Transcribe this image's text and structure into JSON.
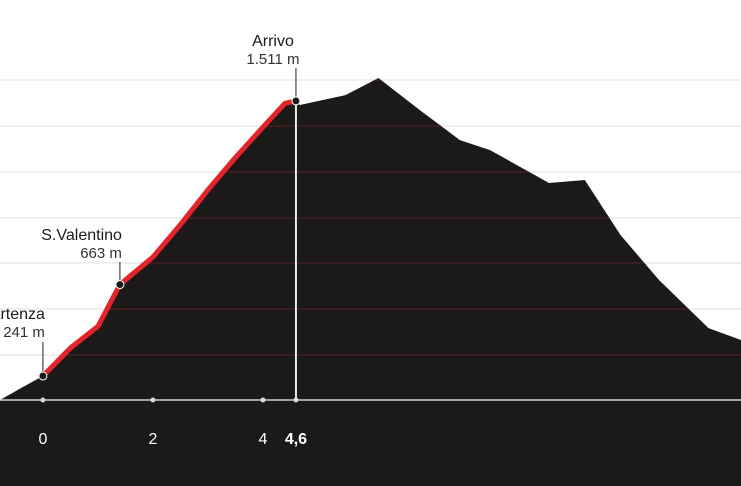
{
  "chart_data": {
    "type": "area",
    "x": [
      -0.78,
      -0.4,
      0,
      0.5,
      1.0,
      1.4,
      2.0,
      2.5,
      3.0,
      3.5,
      4.0,
      4.4,
      4.6,
      4.67,
      5.5,
      6.1,
      6.85,
      7.58,
      8.13,
      9.2,
      9.85,
      10.5,
      11.2,
      12.1,
      12.69
    ],
    "series": [
      {
        "color": "#1c1a19",
        "values": [
          130,
          185,
          241,
          370,
          470,
          663,
          790,
          940,
          1100,
          1250,
          1390,
          1500,
          1511,
          1492,
          1538,
          1617,
          1469,
          1330,
          1284,
          1132,
          1146,
          892,
          684,
          462,
          407
        ]
      },
      {
        "color": "#e3242b",
        "values": [
          null,
          null,
          241,
          370,
          470,
          663,
          790,
          940,
          1100,
          1250,
          1390,
          1500,
          1511,
          null,
          null,
          null,
          null,
          null,
          null,
          null,
          null,
          null,
          null,
          null,
          null
        ]
      }
    ],
    "xlim": [
      -0.78,
      12.69
    ],
    "ylim": [
      130,
      1700
    ],
    "xticks": [
      0,
      2,
      4,
      {
        "value": 4.6,
        "label": "4,6"
      }
    ],
    "annotations": [
      {
        "label": "Partenza",
        "value_label": "241 m",
        "x": 0,
        "y": 241
      },
      {
        "label": "S.Valentino",
        "value_label": "663 m",
        "x": 1.4,
        "y": 663
      },
      {
        "label": "Arrivo",
        "value_label": "1.511 m",
        "x": 4.6,
        "y": 1511
      }
    ]
  }
}
